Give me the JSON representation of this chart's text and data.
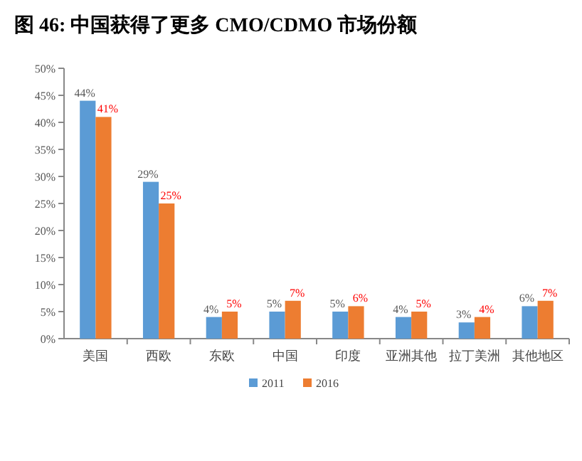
{
  "chart_data": {
    "type": "bar",
    "title": "图 46: 中国获得了更多 CMO/CDMO 市场份额",
    "categories": [
      "美国",
      "西欧",
      "东欧",
      "中国",
      "印度",
      "亚洲其他",
      "拉丁美洲",
      "其他地区"
    ],
    "series": [
      {
        "name": "2011",
        "color": "#5b9bd5",
        "values": [
          44,
          29,
          4,
          5,
          5,
          4,
          3,
          6
        ],
        "value_labels": [
          "44%",
          "29%",
          "4%",
          "5%",
          "5%",
          "4%",
          "3%",
          "6%"
        ]
      },
      {
        "name": "2016",
        "color": "#ed7d31",
        "values": [
          41,
          25,
          5,
          7,
          6,
          5,
          4,
          7
        ],
        "value_labels": [
          "41%",
          "25%",
          "5%",
          "7%",
          "6%",
          "5%",
          "4%",
          "7%"
        ]
      }
    ],
    "ylim": [
      0,
      50
    ],
    "yticks": [
      {
        "value": 0,
        "label": "0%"
      },
      {
        "value": 5,
        "label": "5%"
      },
      {
        "value": 10,
        "label": "10%"
      },
      {
        "value": 15,
        "label": "15%"
      },
      {
        "value": 20,
        "label": "20%"
      },
      {
        "value": 25,
        "label": "25%"
      },
      {
        "value": 30,
        "label": "30%"
      },
      {
        "value": 35,
        "label": "35%"
      },
      {
        "value": 40,
        "label": "40%"
      },
      {
        "value": 45,
        "label": "45%"
      },
      {
        "value": 50,
        "label": "50%"
      }
    ],
    "grid": false,
    "legend": "bottom"
  }
}
